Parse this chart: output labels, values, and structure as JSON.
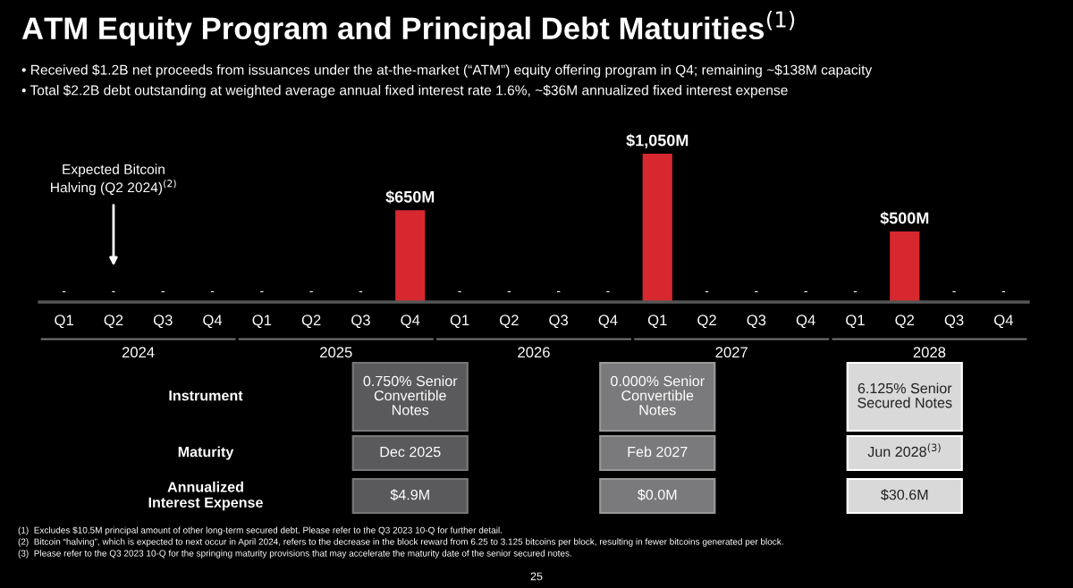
{
  "chart_data": {
    "type": "bar",
    "title": "ATM Equity Program and Principal Debt Maturities$^{(1)}$",
    "subtitle": "• Received $1.2B net proceeds from issuances under the at-the-market (“ATM”) equity offering program in Q4; remaining ~$138M capacity\n• Total $2.2B debt outstanding at weighted average annual fixed interest rate 1.6%, ~$36M annualized fixed interest expense",
    "categories": [
      "Q1",
      "Q2",
      "Q3",
      "Q4",
      "Q1",
      "Q2",
      "Q3",
      "Q4",
      "Q1",
      "Q2",
      "Q3",
      "Q4",
      "Q1",
      "Q2",
      "Q3",
      "Q4",
      "Q1",
      "Q2",
      "Q3",
      "Q4"
    ],
    "values": [
      0,
      0,
      0,
      0,
      0,
      0,
      0,
      650,
      0,
      0,
      0,
      0,
      1050,
      0,
      0,
      0,
      0,
      500,
      0,
      0
    ],
    "value_labels": [
      "-",
      "-",
      "-",
      "-",
      "-",
      "-",
      "-",
      "$650M",
      "-",
      "-",
      "-",
      "-",
      "$1,050M",
      "-",
      "-",
      "-",
      "-",
      "$500M",
      "-",
      "-"
    ],
    "color": "#d7282f",
    "grid": false,
    "legend": false,
    "annotations": [
      "Expected Bitcoin\nHalving (Q2 2024)$^{(2)}$",
      "2024",
      "2025",
      "2026",
      "2027",
      "2028",
      "Instrument",
      "Maturity",
      "Annualized\nInterest Expense",
      "0.750% Senior\nConvertible\nNotes",
      "Dec 2025",
      "$4.9M",
      "0.000% Senior\nConvertible\nNotes",
      "Feb 2027",
      "$0.0M",
      "6.125% Senior\nSecured Notes",
      "Jun 2028$^{(3)}$",
      "$30.6M",
      "(1)  Excludes $10.5M principal amount of other long-term secured debt. Please refer to the Q3 2023 10-Q for further detail.",
      "(2)  Bitcoin “halving”, which is expected to next occur in April 2024, refers to the decrease in the block reward from 6.25 to 3.125 bitcoins per block, resulting in fewer bitcoins generated per block.",
      "(3)  Please refer to the Q3 2023 10-Q for the springing maturity provisions that may accelerate the maturity date of the senior secured notes.",
      "25"
    ]
  }
}
